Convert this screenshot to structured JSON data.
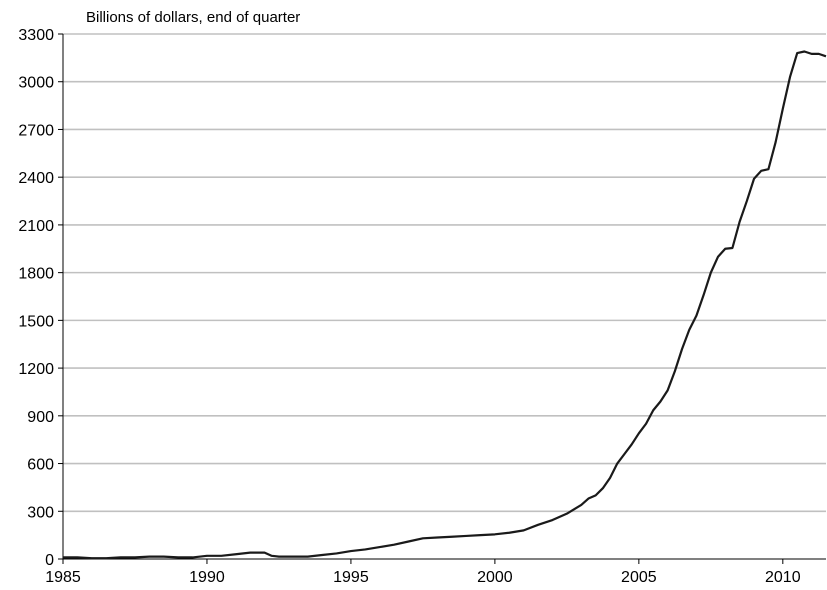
{
  "chart_data": {
    "type": "line",
    "title": "",
    "ylabel": "Billions of dollars, end of quarter",
    "xlabel": "",
    "xlim": [
      1985,
      2011.5
    ],
    "ylim": [
      0,
      3300
    ],
    "x_ticks": [
      "1985",
      "1990",
      "1995",
      "2000",
      "2005",
      "2010"
    ],
    "y_ticks": [
      "0",
      "300",
      "600",
      "900",
      "1200",
      "1500",
      "1800",
      "2100",
      "2400",
      "2700",
      "3000",
      "3300"
    ],
    "grid": "horizontal",
    "legend": "none",
    "line_color": "#1a1a1a",
    "grid_color": "#c0c0c0",
    "series": [
      {
        "x": [
          1985.0,
          1985.5,
          1986.0,
          1986.5,
          1987.0,
          1987.5,
          1988.0,
          1988.5,
          1989.0,
          1989.5,
          1990.0,
          1990.5,
          1991.0,
          1991.5,
          1992.0,
          1992.25,
          1992.5,
          1993.0,
          1993.5,
          1994.0,
          1994.5,
          1995.0,
          1995.5,
          1996.0,
          1996.5,
          1997.0,
          1997.5,
          1998.0,
          1998.5,
          1999.0,
          1999.5,
          2000.0,
          2000.5,
          2001.0,
          2001.5,
          2002.0,
          2002.5,
          2003.0,
          2003.25,
          2003.5,
          2003.75,
          2004.0,
          2004.25,
          2004.5,
          2004.75,
          2005.0,
          2005.25,
          2005.5,
          2005.75,
          2006.0,
          2006.25,
          2006.5,
          2006.75,
          2007.0,
          2007.25,
          2007.5,
          2007.75,
          2008.0,
          2008.25,
          2008.5,
          2008.75,
          2009.0,
          2009.25,
          2009.5,
          2009.75,
          2010.0,
          2010.25,
          2010.5,
          2010.75,
          2011.0,
          2011.25,
          2011.5
        ],
        "values": [
          10,
          10,
          5,
          5,
          10,
          10,
          15,
          15,
          10,
          10,
          20,
          20,
          30,
          40,
          40,
          20,
          15,
          15,
          15,
          25,
          35,
          50,
          60,
          75,
          90,
          110,
          130,
          135,
          140,
          145,
          150,
          155,
          165,
          180,
          215,
          245,
          285,
          340,
          380,
          400,
          445,
          510,
          600,
          660,
          720,
          790,
          850,
          935,
          990,
          1060,
          1180,
          1320,
          1440,
          1530,
          1660,
          1800,
          1900,
          1950,
          1955,
          2120,
          2250,
          2390,
          2440,
          2450,
          2620,
          2830,
          3030,
          3180,
          3190,
          3175,
          3175,
          3160
        ]
      }
    ]
  }
}
